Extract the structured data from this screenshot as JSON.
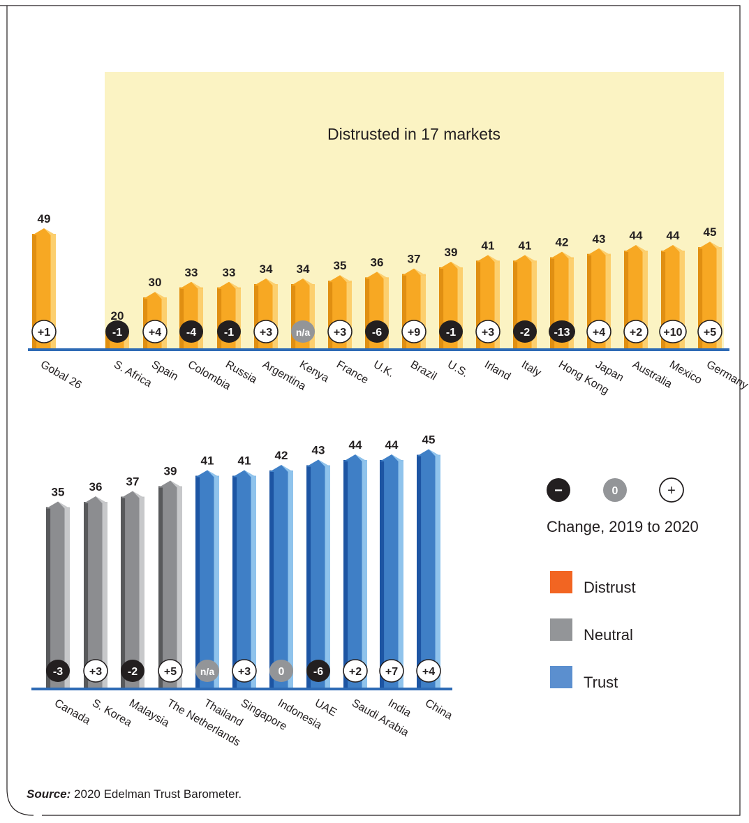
{
  "colors": {
    "distrust": "#f26522",
    "neutral": "#939598",
    "trust": "#5b8fcf",
    "bar_orange": "#f7a823",
    "bar_orange_dark": "#d98a10",
    "bar_orange_light": "#fdd07a",
    "highlight_bg": "#fbf3c3",
    "axis": "#2e6bb5",
    "badge_dark": "#231f20",
    "badge_na": "#939598"
  },
  "source": {
    "label": "Source:",
    "text": "2020 Edelman Trust Barometer."
  },
  "legend": {
    "change_title": "Change, 2019 to 2020",
    "change_symbols": [
      {
        "symbol": "−",
        "meaning": "decrease"
      },
      {
        "symbol": "0",
        "meaning": "no change"
      },
      {
        "symbol": "+",
        "meaning": "increase"
      }
    ],
    "categories": [
      "Distrust",
      "Neutral",
      "Trust"
    ]
  },
  "chart_data": [
    {
      "type": "bar",
      "panel": "top",
      "annotation": "Distrusted in 17 markets",
      "categories": [
        "Gobal 26",
        "S. Africa",
        "Spain",
        "Colombia",
        "Russia",
        "Argentina",
        "Kenya",
        "France",
        "U.K.",
        "Brazil",
        "U.S.",
        "Irland",
        "Italy",
        "Hong Kong",
        "Japan",
        "Australia",
        "Mexico",
        "Germany"
      ],
      "values": [
        49,
        20,
        30,
        33,
        33,
        34,
        34,
        35,
        36,
        37,
        39,
        41,
        41,
        42,
        43,
        44,
        44,
        45
      ],
      "changes": [
        "+1",
        "-1",
        "+4",
        "-4",
        "-1",
        "+3",
        "n/a",
        "+3",
        "-6",
        "+9",
        "-1",
        "+3",
        "-2",
        "-13",
        "+4",
        "+2",
        "+10",
        "+5"
      ],
      "bar_class": [
        "distrust",
        "distrust",
        "distrust",
        "distrust",
        "distrust",
        "distrust",
        "distrust",
        "distrust",
        "distrust",
        "distrust",
        "distrust",
        "distrust",
        "distrust",
        "distrust",
        "distrust",
        "distrust",
        "distrust",
        "distrust"
      ]
    },
    {
      "type": "bar",
      "panel": "bottom",
      "categories": [
        "Canada",
        "S. Korea",
        "Malaysia",
        "The Netherlands",
        "Thailand",
        "Singapore",
        "Indonesia",
        "UAE",
        "Saudi Arabia",
        "India",
        "China"
      ],
      "values": [
        35,
        36,
        37,
        39,
        41,
        41,
        42,
        43,
        44,
        44,
        45
      ],
      "changes": [
        "-3",
        "+3",
        "-2",
        "+5",
        "n/a",
        "+3",
        "0",
        "-6",
        "+2",
        "+7",
        "+4"
      ],
      "bar_class": [
        "neutral",
        "neutral",
        "neutral",
        "neutral",
        "trust",
        "trust",
        "trust",
        "trust",
        "trust",
        "trust",
        "trust"
      ]
    }
  ]
}
